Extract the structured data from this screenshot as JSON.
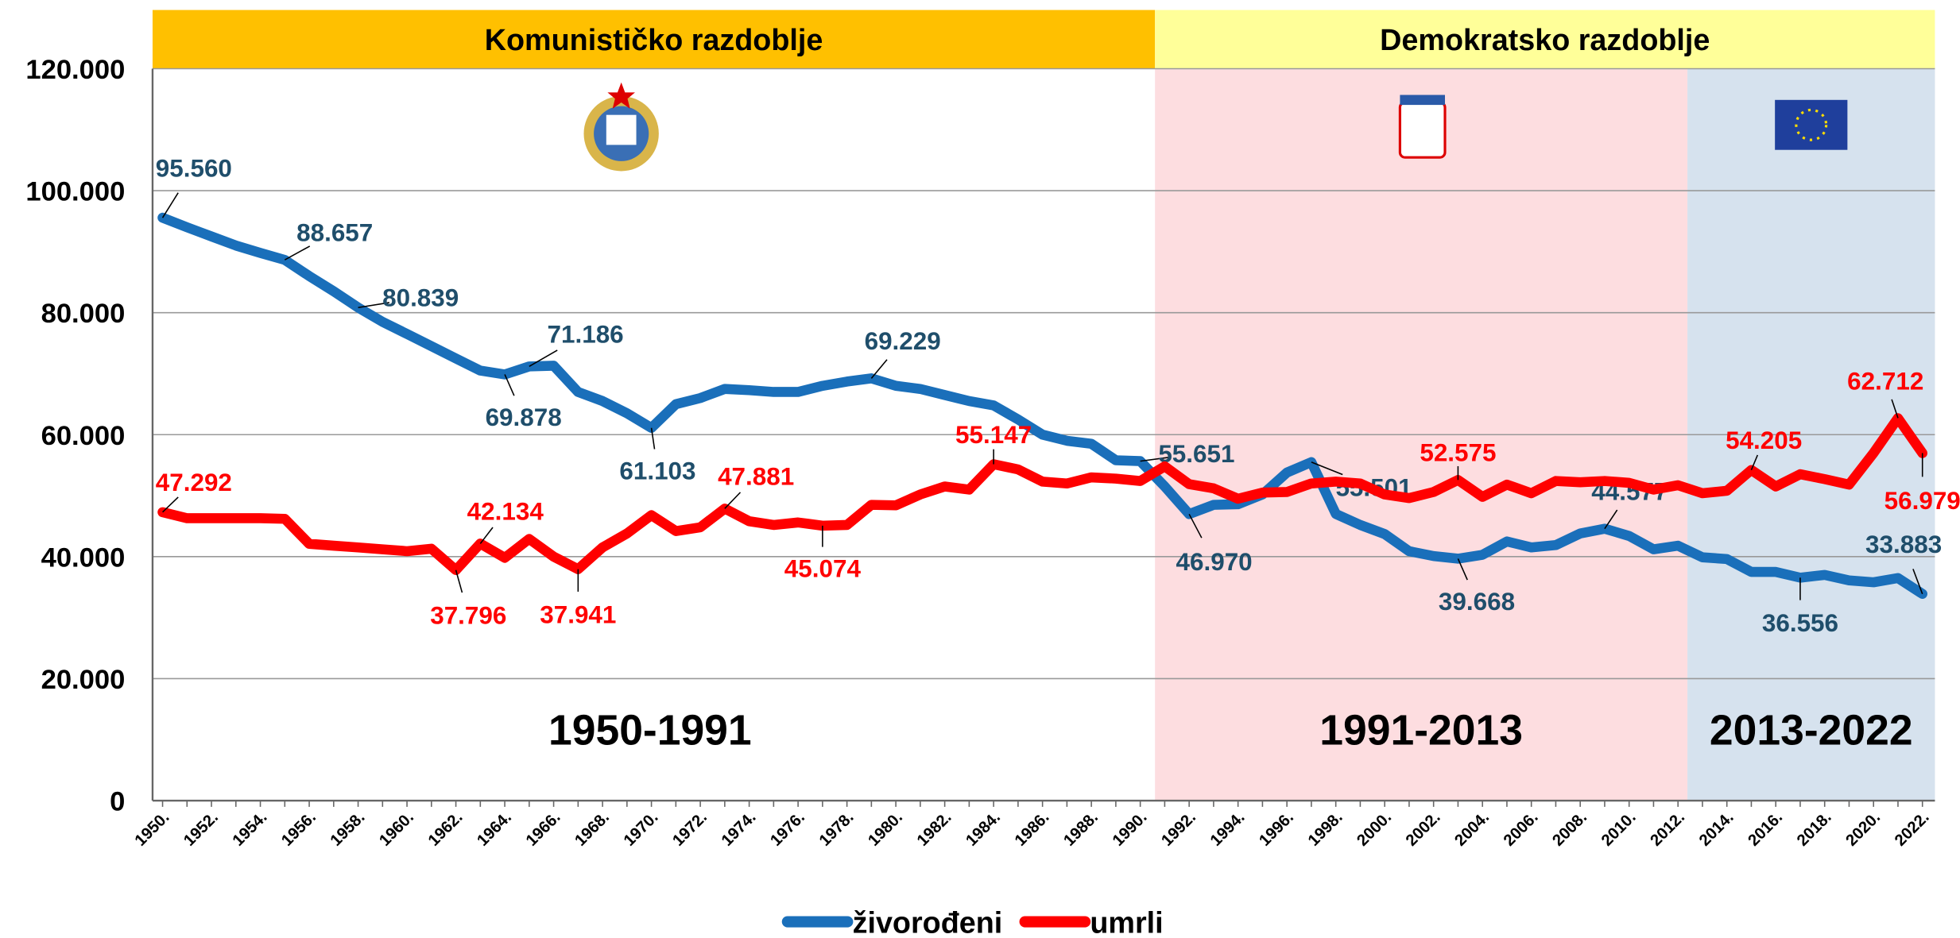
{
  "chart_data": {
    "type": "line",
    "periods": [
      "Komunističko razdoblje",
      "Demokratsko razdoblje"
    ],
    "eras": [
      "1950-1991",
      "1991-2013",
      "2013-2022"
    ],
    "categories": [
      "1950.",
      null,
      "1952.",
      null,
      "1954.",
      null,
      "1956.",
      null,
      "1958.",
      null,
      "1960.",
      null,
      "1962.",
      null,
      "1964.",
      null,
      "1966.",
      null,
      "1968.",
      null,
      "1970.",
      null,
      "1972.",
      null,
      "1974.",
      null,
      "1976.",
      null,
      "1978.",
      null,
      "1980.",
      null,
      "1982.",
      null,
      "1984.",
      null,
      "1986.",
      null,
      "1988.",
      null,
      "1990.",
      null,
      "1992.",
      null,
      "1994.",
      null,
      "1996.",
      null,
      "1998.",
      null,
      "2000.",
      null,
      "2002.",
      null,
      "2004.",
      null,
      "2006.",
      null,
      "2008.",
      null,
      "2010.",
      null,
      "2012.",
      null,
      "2014.",
      null,
      "2016.",
      null,
      "2018.",
      null,
      "2020.",
      null,
      "2022."
    ],
    "series": [
      {
        "name": "živorođeni",
        "color": "#1a6fba",
        "values": [
          95560,
          94000,
          92500,
          91000,
          89800,
          88657,
          86000,
          83500,
          80839,
          78500,
          76500,
          74500,
          72500,
          70500,
          69878,
          71186,
          71300,
          67000,
          65500,
          63500,
          61103,
          65000,
          66000,
          67500,
          67300,
          67000,
          67000,
          68000,
          68700,
          69229,
          68000,
          67500,
          66500,
          65500,
          64800,
          62500,
          60000,
          59000,
          58500,
          55800,
          55651,
          51500,
          46970,
          48500,
          48600,
          50200,
          53800,
          55501,
          47000,
          45200,
          43700,
          40900,
          40100,
          39668,
          40300,
          42500,
          41500,
          41900,
          43800,
          44577,
          43400,
          41200,
          41800,
          39900,
          39600,
          37500,
          37500,
          36556,
          37000,
          36100,
          35800,
          36500,
          33883
        ],
        "value_labels": [
          "95.560",
          null,
          null,
          null,
          null,
          "88.657",
          null,
          null,
          "80.839",
          null,
          null,
          null,
          null,
          null,
          "69.878",
          "71.186",
          null,
          null,
          null,
          null,
          "61.103",
          null,
          null,
          null,
          null,
          null,
          null,
          null,
          null,
          "69.229",
          null,
          null,
          null,
          null,
          null,
          null,
          null,
          null,
          null,
          null,
          "55.651",
          null,
          "46.970",
          null,
          null,
          null,
          null,
          "55.501",
          null,
          null,
          null,
          null,
          null,
          "39.668",
          null,
          null,
          null,
          null,
          null,
          "44.577",
          null,
          null,
          null,
          null,
          null,
          null,
          null,
          "36.556",
          null,
          null,
          null,
          null,
          "33.883"
        ]
      },
      {
        "name": "umrli",
        "color": "#ff0000",
        "values": [
          47292,
          46300,
          46300,
          46300,
          46300,
          46200,
          42100,
          41800,
          41500,
          41200,
          40900,
          41300,
          37796,
          42134,
          39800,
          42900,
          40000,
          37941,
          41500,
          43800,
          46800,
          44200,
          44800,
          47881,
          45800,
          45200,
          45600,
          45074,
          45200,
          48500,
          48400,
          50200,
          51500,
          51000,
          55147,
          54300,
          52300,
          52000,
          53000,
          52800,
          52400,
          54800,
          51900,
          51200,
          49500,
          50500,
          50600,
          52000,
          52300,
          52000,
          50200,
          49600,
          50600,
          52575,
          49800,
          51800,
          50400,
          52400,
          52200,
          52400,
          52100,
          51000,
          51700,
          50400,
          50800,
          54205,
          51500,
          53500,
          52700,
          51800,
          57000,
          62712,
          56979
        ],
        "value_labels": [
          "47.292",
          null,
          null,
          null,
          null,
          null,
          null,
          null,
          null,
          null,
          null,
          null,
          "37.796",
          "42.134",
          null,
          null,
          null,
          "37.941",
          null,
          null,
          null,
          null,
          null,
          "47.881",
          null,
          null,
          null,
          "45.074",
          null,
          null,
          null,
          null,
          null,
          null,
          "55.147",
          null,
          null,
          null,
          null,
          null,
          null,
          null,
          null,
          null,
          null,
          null,
          null,
          null,
          null,
          null,
          null,
          null,
          null,
          "52.575",
          null,
          null,
          null,
          null,
          null,
          null,
          null,
          null,
          null,
          null,
          null,
          "54.205",
          null,
          null,
          null,
          null,
          null,
          "62.712",
          "56.979"
        ]
      }
    ],
    "ylim": [
      0,
      120000
    ],
    "yticks": [
      0,
      {
        "value": 20000,
        "label": "20.000"
      },
      {
        "value": 40000,
        "label": "40.000"
      },
      {
        "value": 60000,
        "label": "60.000"
      },
      {
        "value": 80000,
        "label": "80.000"
      },
      {
        "value": 100000,
        "label": "100.000"
      },
      {
        "value": 120000,
        "label": "120.000"
      }
    ],
    "grid": true,
    "legend": "bottom"
  }
}
